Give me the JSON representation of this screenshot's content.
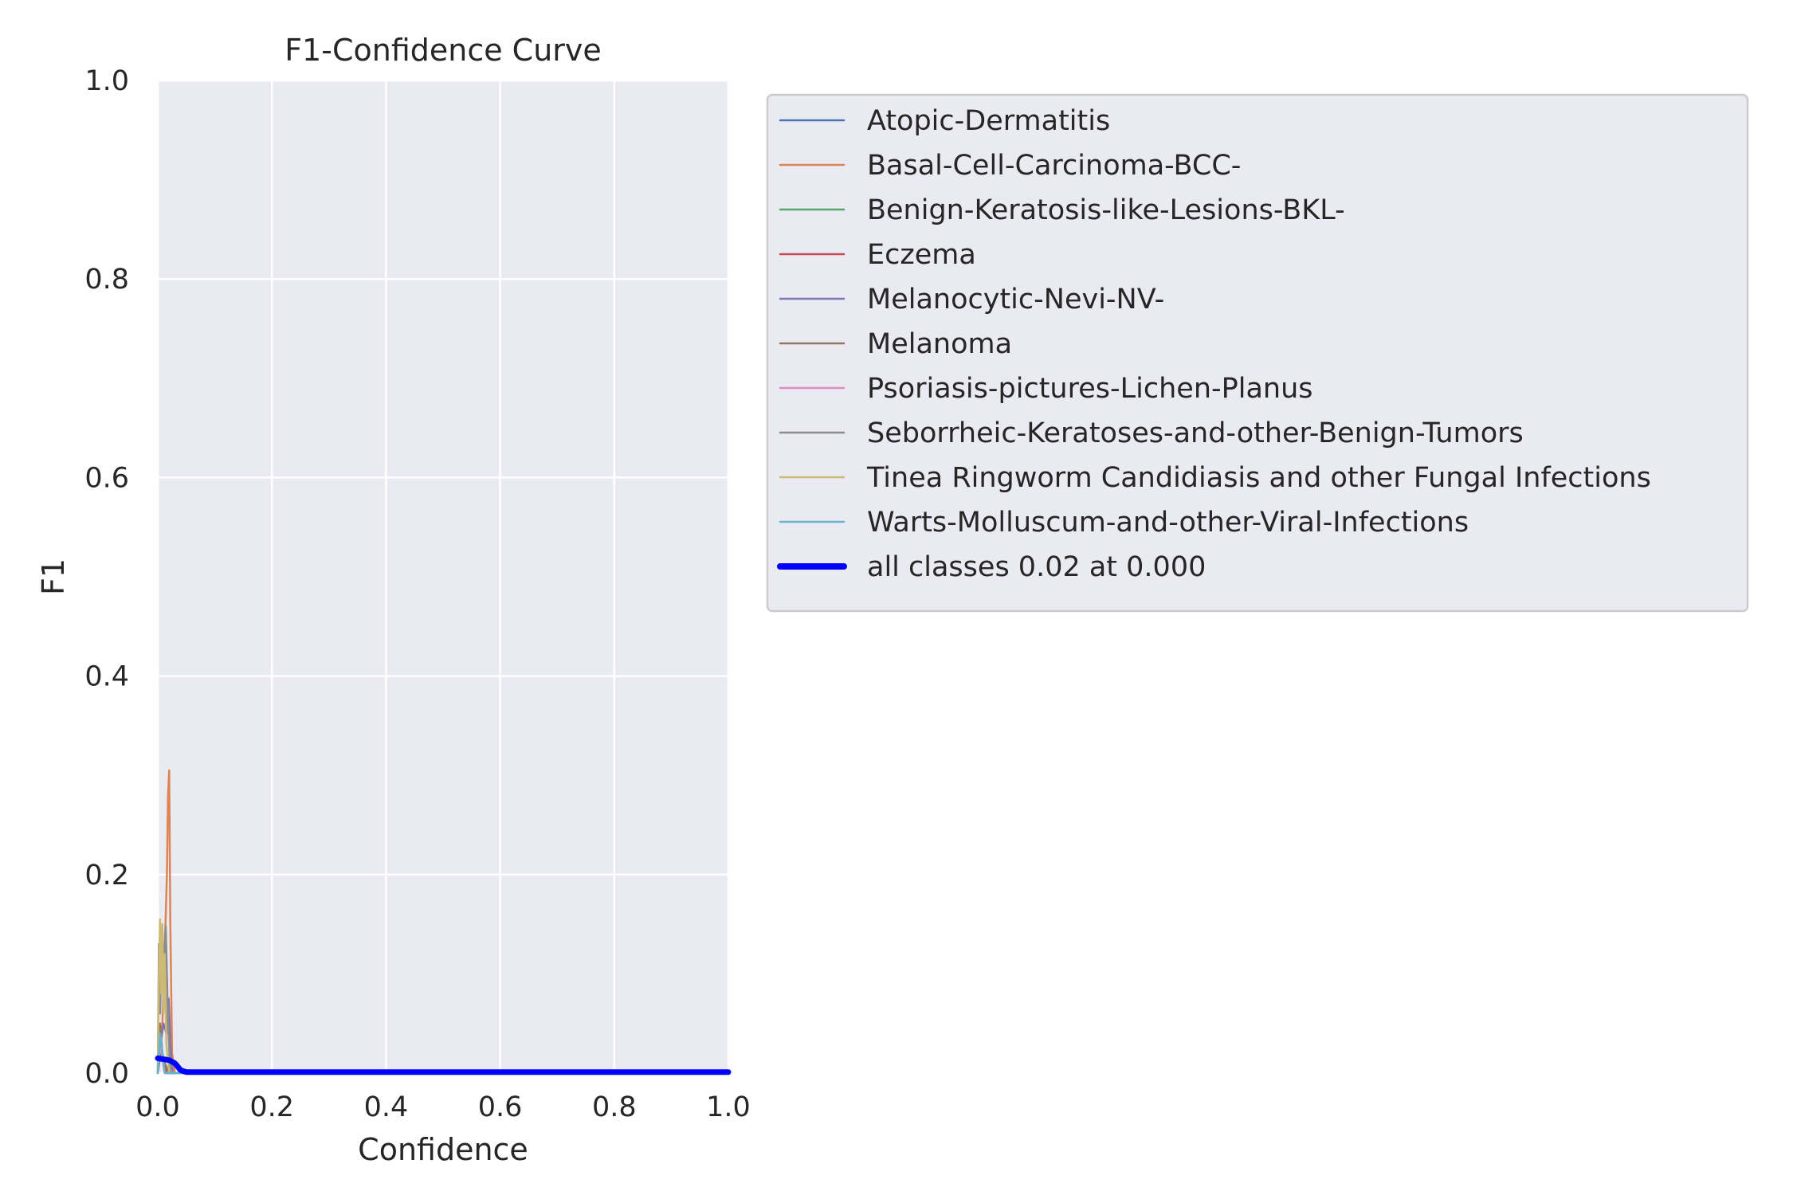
{
  "chart_data": {
    "type": "line",
    "title": "F1-Confidence Curve",
    "xlabel": "Confidence",
    "ylabel": "F1",
    "xlim": [
      0,
      1
    ],
    "ylim": [
      0,
      1
    ],
    "xticks": [
      "0.0",
      "0.2",
      "0.4",
      "0.6",
      "0.8",
      "1.0"
    ],
    "yticks": [
      "0.0",
      "0.2",
      "0.4",
      "0.6",
      "0.8",
      "1.0"
    ],
    "grid": true,
    "legend_position": "outside-right",
    "background_color": "#eaeaf2",
    "series": [
      {
        "name": "Atopic-Dermatitis",
        "color": "#4c72b0",
        "x": [
          0,
          0.005,
          0.01,
          0.015,
          0.02,
          0.03,
          1.0
        ],
        "y": [
          0,
          0.02,
          0.01,
          0.005,
          0,
          0,
          0
        ]
      },
      {
        "name": "Basal-Cell-Carcinoma-BCC-",
        "color": "#dd8452",
        "x": [
          0,
          0.008,
          0.012,
          0.016,
          0.018,
          0.02,
          0.022,
          0.025,
          0.03,
          1.0
        ],
        "y": [
          0,
          0.05,
          0.12,
          0.2,
          0.28,
          0.305,
          0.15,
          0.02,
          0,
          0
        ]
      },
      {
        "name": "Benign-Keratosis-like-Lesions-BKL-",
        "color": "#55a868",
        "x": [
          0,
          0.005,
          0.008,
          0.012,
          0.02,
          1.0
        ],
        "y": [
          0,
          0.04,
          0.02,
          0.01,
          0,
          0
        ]
      },
      {
        "name": "Eczema",
        "color": "#c44e52",
        "x": [
          0,
          0.006,
          0.01,
          0.015,
          1.0
        ],
        "y": [
          0,
          0.03,
          0.01,
          0,
          0
        ]
      },
      {
        "name": "Melanocytic-Nevi-NV-",
        "color": "#8172b3",
        "x": [
          0,
          0.005,
          0.01,
          0.015,
          0.019,
          0.022,
          0.026,
          1.0
        ],
        "y": [
          0,
          0.03,
          0.05,
          0.04,
          0.075,
          0.03,
          0,
          0
        ]
      },
      {
        "name": "Melanoma",
        "color": "#937860",
        "x": [
          0,
          0.004,
          0.008,
          0.012,
          0.016,
          0.02,
          1.0
        ],
        "y": [
          0,
          0.05,
          0.02,
          0.01,
          0.005,
          0,
          0
        ]
      },
      {
        "name": "Psoriasis-pictures-Lichen-Planus",
        "color": "#da8bc3",
        "x": [
          0,
          0.004,
          0.008,
          0.012,
          1.0
        ],
        "y": [
          0,
          0.03,
          0.015,
          0,
          0
        ]
      },
      {
        "name": "Seborrheic-Keratoses-and-other-Benign-Tumors",
        "color": "#8c8c8c",
        "x": [
          0,
          0.002,
          0.004,
          0.008,
          0.01,
          0.014,
          0.018,
          0.022,
          1.0
        ],
        "y": [
          0,
          0.13,
          0.06,
          0.148,
          0.1,
          0.148,
          0.05,
          0,
          0
        ]
      },
      {
        "name": "Tinea Ringworm Candidiasis and other Fungal Infections",
        "color": "#ccb974",
        "x": [
          0,
          0.002,
          0.004,
          0.006,
          0.008,
          0.01,
          0.012,
          0.015,
          0.02,
          1.0
        ],
        "y": [
          0,
          0.1,
          0.155,
          0.08,
          0.15,
          0.06,
          0.12,
          0.03,
          0,
          0
        ]
      },
      {
        "name": "Warts-Molluscum-and-other-Viral-Infections",
        "color": "#64b5cd",
        "x": [
          0,
          0.004,
          0.008,
          0.012,
          1.0
        ],
        "y": [
          0,
          0.04,
          0.02,
          0,
          0
        ]
      },
      {
        "name": "all classes 0.02 at 0.000",
        "color": "#0000ff",
        "bold": true,
        "x": [
          0,
          0.01,
          0.02,
          0.03,
          0.04,
          0.05,
          1.0
        ],
        "y": [
          0.015,
          0.014,
          0.013,
          0.01,
          0.003,
          0.001,
          0.001
        ]
      }
    ]
  }
}
